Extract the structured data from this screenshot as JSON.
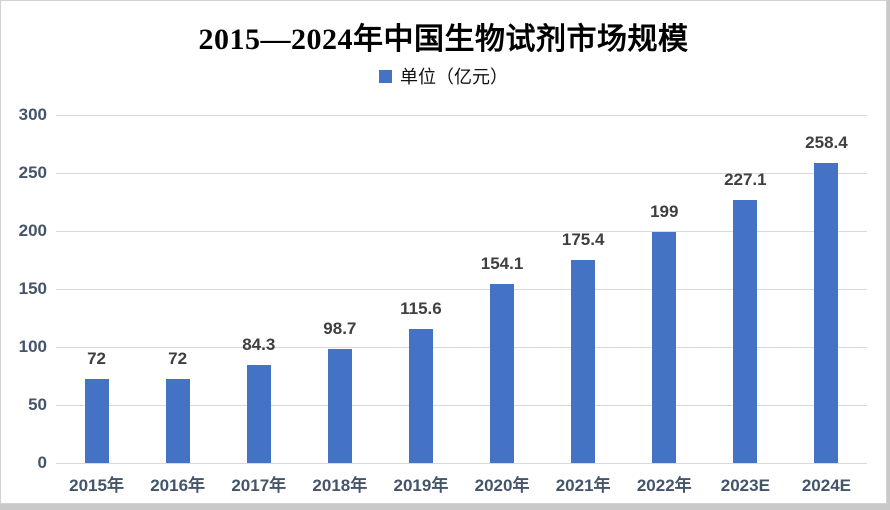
{
  "chart_data": {
    "type": "bar",
    "title": "2015—2024年中国生物试剂市场规模",
    "legend": "单位（亿元）",
    "legend_position": "top",
    "categories": [
      "2015年",
      "2016年",
      "2017年",
      "2018年",
      "2019年",
      "2020年",
      "2021年",
      "2022年",
      "2023E",
      "2024E"
    ],
    "values": [
      72,
      72,
      84.3,
      98.7,
      115.6,
      154.1,
      175.4,
      199,
      227.1,
      258.4
    ],
    "xlabel": "",
    "ylabel": "",
    "ylim": [
      0,
      300
    ],
    "yticks": [
      0,
      50,
      100,
      150,
      200,
      250,
      300
    ],
    "grid": true,
    "data_labels": true,
    "colors": {
      "bar": "#4472C4",
      "gridline": "#D9D9D9",
      "axis_label": "#44546A",
      "data_label": "#3F3F3F",
      "title": "#000000",
      "background": "#FFFFFF",
      "frame_border": "#C9C9C9"
    }
  }
}
